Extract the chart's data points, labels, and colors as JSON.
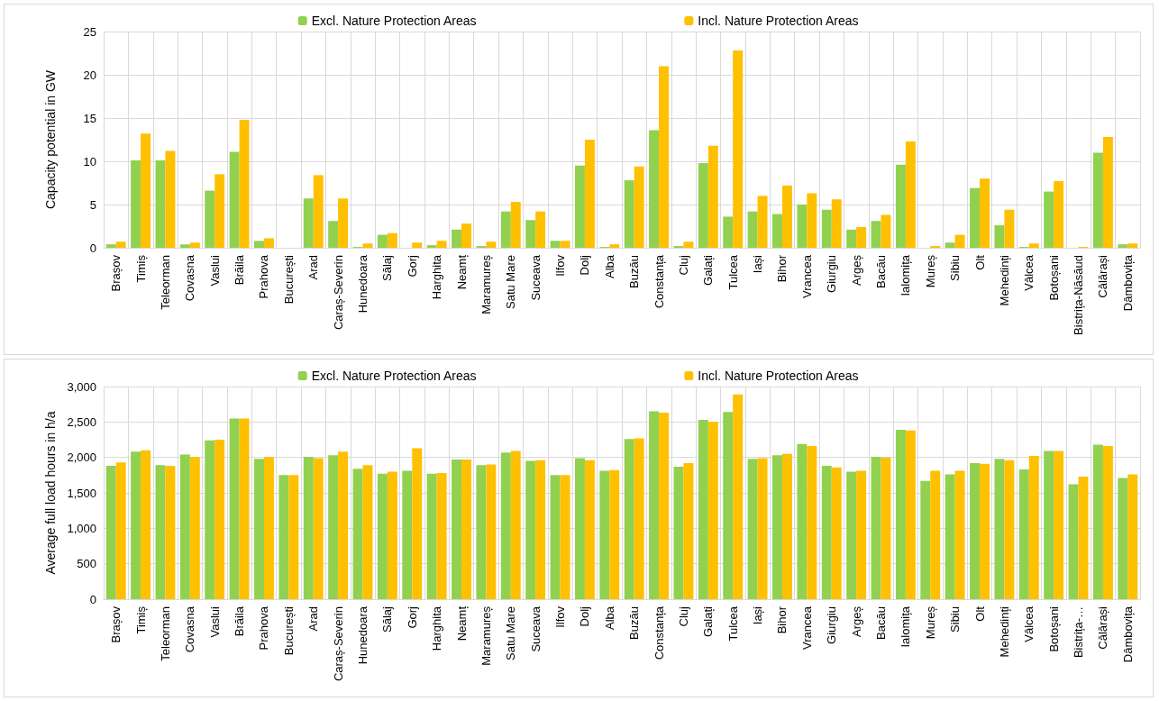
{
  "chart_data": [
    {
      "type": "bar",
      "ylabel": "Capacity potential in GW",
      "categories": [
        "Brașov",
        "Timiș",
        "Teleorman",
        "Covasna",
        "Vaslui",
        "Brăila",
        "Prahova",
        "București",
        "Arad",
        "Caraș-Severin",
        "Hunedoara",
        "Sălaj",
        "Gorj",
        "Harghita",
        "Neamț",
        "Maramureș",
        "Satu Mare",
        "Suceava",
        "Ilfov",
        "Dolj",
        "Alba",
        "Buzău",
        "Constanța",
        "Cluj",
        "Galați",
        "Tulcea",
        "Iași",
        "Bihor",
        "Vrancea",
        "Giurgiu",
        "Argeș",
        "Bacău",
        "Ialomița",
        "Mureș",
        "Sibiu",
        "Olt",
        "Mehedinți",
        "Vâlcea",
        "Botoșani",
        "Bistrița-Năsăud",
        "Călărași",
        "Dâmbovița"
      ],
      "series": [
        {
          "name": "Excl. Nature Protection Areas",
          "color": "#92d050",
          "values": [
            0.4,
            10.1,
            10.1,
            0.4,
            6.6,
            11.1,
            0.8,
            0,
            5.7,
            3.1,
            0.1,
            1.5,
            0,
            0.3,
            2.1,
            0.2,
            4.2,
            3.2,
            0.8,
            9.5,
            0.1,
            7.8,
            13.6,
            0.2,
            9.8,
            3.6,
            4.2,
            3.9,
            5.0,
            4.4,
            2.1,
            3.1,
            9.6,
            0,
            0.6,
            6.9,
            2.6,
            0.1,
            6.5,
            0,
            11.0,
            0.4
          ]
        },
        {
          "name": "Incl. Nature Protection Areas",
          "color": "#ffc000",
          "values": [
            0.7,
            13.2,
            11.2,
            0.6,
            8.5,
            14.8,
            1.1,
            0,
            8.4,
            5.7,
            0.5,
            1.7,
            0.6,
            0.8,
            2.8,
            0.7,
            5.3,
            4.2,
            0.8,
            12.5,
            0.4,
            9.4,
            21.0,
            0.7,
            11.8,
            22.8,
            6.0,
            7.2,
            6.3,
            5.6,
            2.4,
            3.8,
            12.3,
            0.2,
            1.5,
            8.0,
            4.4,
            0.5,
            7.7,
            0.1,
            12.8,
            0.5
          ]
        }
      ],
      "ylim": [
        0,
        25
      ],
      "yticks": [
        0,
        5,
        10,
        15,
        20,
        25
      ],
      "grid": true,
      "legend": "top"
    },
    {
      "type": "bar",
      "ylabel": "Average full load hours in h/a",
      "categories": [
        "Brașov",
        "Timiș",
        "Teleorman",
        "Covasna",
        "Vaslui",
        "Brăila",
        "Prahova",
        "București",
        "Arad",
        "Caraș-Severin",
        "Hunedoara",
        "Sălaj",
        "Gorj",
        "Harghita",
        "Neamț",
        "Maramureș",
        "Satu Mare",
        "Suceava",
        "Ilfov",
        "Dolj",
        "Alba",
        "Buzău",
        "Constanța",
        "Cluj",
        "Galați",
        "Tulcea",
        "Iași",
        "Bihor",
        "Vrancea",
        "Giurgiu",
        "Argeș",
        "Bacău",
        "Ialomița",
        "Mureș",
        "Sibiu",
        "Olt",
        "Mehedinți",
        "Vâlcea",
        "Botoșani",
        "Bistrița-…",
        "Călărași",
        "Dâmbovița"
      ],
      "series": [
        {
          "name": "Excl. Nature Protection Areas",
          "color": "#92d050",
          "values": [
            1880,
            2080,
            1890,
            2040,
            2240,
            2550,
            1980,
            1750,
            2010,
            2030,
            1840,
            1770,
            1810,
            1770,
            1970,
            1890,
            2070,
            1950,
            1750,
            1990,
            1810,
            2260,
            2650,
            1870,
            2530,
            2640,
            1980,
            2030,
            2190,
            1880,
            1800,
            2010,
            2390,
            1670,
            1760,
            1920,
            1980,
            1830,
            2090,
            1620,
            2180,
            1710
          ]
        },
        {
          "name": "Incl. Nature Protection Areas",
          "color": "#ffc000",
          "values": [
            1930,
            2100,
            1880,
            2010,
            2250,
            2550,
            2010,
            1750,
            1990,
            2080,
            1890,
            1800,
            2130,
            1780,
            1970,
            1900,
            2090,
            1960,
            1750,
            1960,
            1820,
            2270,
            2630,
            1920,
            2500,
            2890,
            1990,
            2050,
            2160,
            1860,
            1810,
            2000,
            2380,
            1810,
            1810,
            1910,
            1960,
            2020,
            2090,
            1730,
            2160,
            1760
          ]
        }
      ],
      "ylim": [
        0,
        3000
      ],
      "yticks": [
        {
          "value": 0,
          "label": "0"
        },
        {
          "value": 500,
          "label": "500"
        },
        {
          "value": 1000,
          "label": "1,000"
        },
        {
          "value": 1500,
          "label": "1,500"
        },
        {
          "value": 2000,
          "label": "2,000"
        },
        {
          "value": 2500,
          "label": "2,500"
        },
        {
          "value": 3000,
          "label": "3,000"
        }
      ],
      "grid": true,
      "legend": "top"
    }
  ]
}
